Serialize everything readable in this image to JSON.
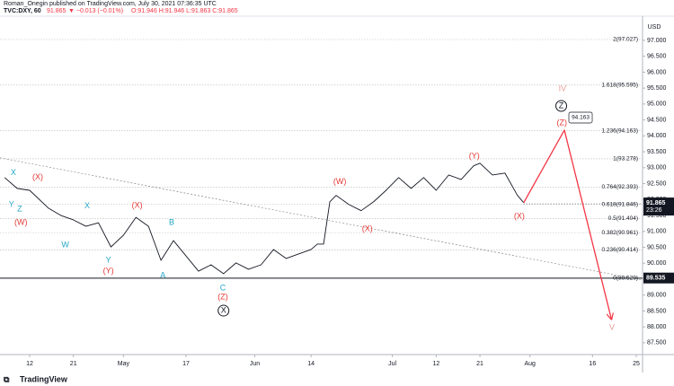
{
  "chart_data": {
    "type": "line",
    "publisher": "Roman_Onegin published on TradingView.com, July 30, 2021 07:36:35 UTC",
    "symbol": "TVC:DXY, 60",
    "change": "▼ −0.013 (−0.01%)",
    "ohlc": "O:91.946 H:91.946 L:91.863 C:91.865",
    "currency": "USD",
    "footer": "TradingView",
    "last_price": 91.865,
    "countdown": "23:26",
    "level_badge": 89.535,
    "target": 94.163,
    "xlim": [
      -4.74,
      98.0
    ],
    "ylim": [
      87.13,
      97.76
    ],
    "xticks": [
      {
        "value": 0,
        "label": "12"
      },
      {
        "value": 7,
        "label": "21"
      },
      {
        "value": 15,
        "label": "May"
      },
      {
        "value": 25,
        "label": "17"
      },
      {
        "value": 36,
        "label": "Jun"
      },
      {
        "value": 45,
        "label": "14"
      },
      {
        "value": 58,
        "label": "Jul"
      },
      {
        "value": 65,
        "label": "12"
      },
      {
        "value": 72,
        "label": "21"
      },
      {
        "value": 80,
        "label": "Aug"
      },
      {
        "value": 90,
        "label": "16"
      },
      {
        "value": 97,
        "label": "25"
      }
    ],
    "yticks": [
      {
        "value": 87.5,
        "label": "87.500"
      },
      {
        "value": 88,
        "label": "88.000"
      },
      {
        "value": 88.5,
        "label": "88.500"
      },
      {
        "value": 89,
        "label": "89.000"
      },
      {
        "value": 89.5,
        "label": "89.500"
      },
      {
        "value": 90,
        "label": "90.000"
      },
      {
        "value": 90.5,
        "label": "90.500"
      },
      {
        "value": 91,
        "label": "91.000"
      },
      {
        "value": 91.5,
        "label": "91.500"
      },
      {
        "value": 92,
        "label": "92.000"
      },
      {
        "value": 92.5,
        "label": "92.500"
      },
      {
        "value": 93,
        "label": "93.000"
      },
      {
        "value": 93.5,
        "label": "93.500"
      },
      {
        "value": 94,
        "label": "94.000"
      },
      {
        "value": 94.5,
        "label": "94.500"
      },
      {
        "value": 95,
        "label": "95.000"
      },
      {
        "value": 95.5,
        "label": "95.500"
      },
      {
        "value": 96,
        "label": "96.000"
      },
      {
        "value": 96.5,
        "label": "96.500"
      },
      {
        "value": 97,
        "label": "97.000"
      }
    ],
    "series": [
      {
        "color": "#131722",
        "x": [
          -4,
          -2,
          0,
          3,
          5,
          7,
          9,
          11,
          13,
          15,
          17,
          19,
          21,
          23,
          25,
          27,
          29,
          31,
          33,
          35,
          37,
          39,
          41,
          43,
          45,
          46,
          47,
          48,
          49,
          51,
          53,
          55,
          57,
          59,
          61,
          63,
          65,
          67,
          69,
          71,
          72,
          74,
          76,
          78,
          79
        ],
        "values": [
          92.69,
          92.35,
          92.29,
          91.73,
          91.5,
          91.36,
          91.16,
          91.27,
          90.51,
          90.88,
          91.44,
          91.16,
          90.09,
          90.71,
          90.23,
          89.75,
          89.95,
          89.67,
          90.01,
          89.81,
          89.95,
          90.43,
          90.15,
          90.29,
          90.43,
          90.6,
          90.6,
          91.93,
          92.13,
          91.85,
          91.65,
          91.93,
          92.29,
          92.69,
          92.35,
          92.69,
          92.29,
          92.77,
          92.63,
          93.06,
          93.14,
          92.77,
          92.83,
          92.13,
          91.9
        ]
      },
      {
        "color": "#f23645",
        "x": [
          79,
          85.5,
          93
        ],
        "values": [
          91.9,
          94.18,
          88.26
        ]
      }
    ],
    "trendline": {
      "x": [
        -4.74,
        98.0
      ],
      "values": [
        93.31,
        89.47
      ]
    },
    "fib_levels": [
      {
        "value": 97.027,
        "label": "2(97.027)"
      },
      {
        "value": 95.595,
        "label": "1.618(95.595)"
      },
      {
        "value": 94.163,
        "label": "1.236(94.163)"
      },
      {
        "value": 93.278,
        "label": "1(93.278)"
      },
      {
        "value": 92.393,
        "label": "0.764(92.393)"
      },
      {
        "value": 91.846,
        "label": "0.618(91.846)"
      },
      {
        "value": 91.404,
        "label": "0.5(91.404)"
      },
      {
        "value": 90.961,
        "label": "0.382(90.961)"
      },
      {
        "value": 90.414,
        "label": "0.236(90.414)"
      },
      {
        "value": 89.529,
        "label": "0(89.529)"
      }
    ],
    "annotations": [
      {
        "text": "X",
        "x": -2.6,
        "y": 92.83,
        "color": "#22a6c4"
      },
      {
        "text": "Y",
        "x": -2.9,
        "y": 91.84,
        "color": "#22a6c4"
      },
      {
        "text": "Z",
        "x": -1.6,
        "y": 91.7,
        "color": "#22a6c4"
      },
      {
        "text": "X",
        "x": 9.2,
        "y": 91.79,
        "color": "#22a6c4"
      },
      {
        "text": "W",
        "x": 5.7,
        "y": 90.57,
        "color": "#22a6c4"
      },
      {
        "text": "Y",
        "x": 12.6,
        "y": 90.09,
        "color": "#22a6c4"
      },
      {
        "text": "B",
        "x": 22.7,
        "y": 91.27,
        "color": "#22a6c4"
      },
      {
        "text": "A",
        "x": 21.3,
        "y": 89.61,
        "color": "#22a6c4"
      },
      {
        "text": "C",
        "x": 30.9,
        "y": 89.21,
        "color": "#22a6c4"
      },
      {
        "text": "(X)",
        "x": 1.3,
        "y": 92.69,
        "color": "#e53935"
      },
      {
        "text": "(W)",
        "x": -1.4,
        "y": 91.27,
        "color": "#e53935"
      },
      {
        "text": "(X)",
        "x": 17.2,
        "y": 91.81,
        "color": "#e53935"
      },
      {
        "text": "(Y)",
        "x": 12.6,
        "y": 89.75,
        "color": "#e53935"
      },
      {
        "text": "(Z)",
        "x": 30.9,
        "y": 88.93,
        "color": "#e53935"
      },
      {
        "text": "(W)",
        "x": 49.6,
        "y": 92.55,
        "color": "#e53935"
      },
      {
        "text": "(X)",
        "x": 54.0,
        "y": 91.08,
        "color": "#e53935"
      },
      {
        "text": "(Y)",
        "x": 71.1,
        "y": 93.36,
        "color": "#e53935"
      },
      {
        "text": "(X)",
        "x": 78.3,
        "y": 91.47,
        "color": "#e53935"
      },
      {
        "text": "(Z)",
        "x": 85.1,
        "y": 94.4,
        "color": "#e53935"
      },
      {
        "text": "IV",
        "x": 85.2,
        "y": 95.47,
        "color": "#ef9a9a"
      },
      {
        "text": "V",
        "x": 93.1,
        "y": 87.97,
        "color": "#ef9a9a"
      },
      {
        "text": "Z",
        "x": 85.0,
        "y": 94.94,
        "color": "#131722",
        "circled": true
      },
      {
        "text": "X",
        "x": 31.0,
        "y": 88.51,
        "color": "#131722",
        "circled": true
      }
    ]
  }
}
